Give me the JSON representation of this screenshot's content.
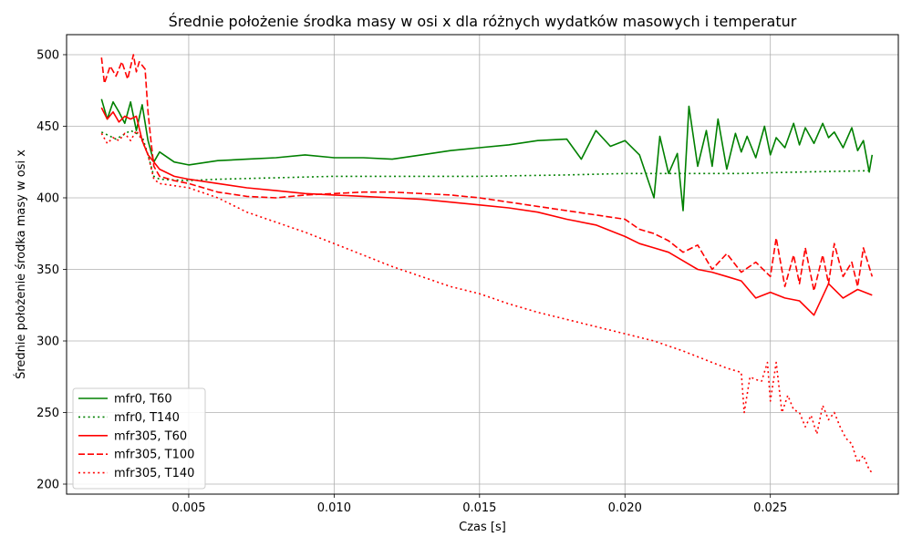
{
  "chart_data": {
    "type": "line",
    "title": "Średnie położenie środka masy w osi x dla różnych wydatków masowych i temperatur",
    "xlabel": "Czas [s]",
    "ylabel": "Średnie położenie środka masy w osi x",
    "xlim": [
      0.0008,
      0.0294
    ],
    "ylim": [
      193,
      514
    ],
    "xticks": [
      0.005,
      0.01,
      0.015,
      0.02,
      0.025
    ],
    "xtick_labels": [
      "0.005",
      "0.010",
      "0.015",
      "0.020",
      "0.025"
    ],
    "yticks": [
      200,
      250,
      300,
      350,
      400,
      450,
      500
    ],
    "ytick_labels": [
      "200",
      "250",
      "300",
      "350",
      "400",
      "450",
      "500"
    ],
    "grid": true,
    "legend_position": "lower-left",
    "series": [
      {
        "name": "mfr0, T60",
        "color": "#008000",
        "style": "solid",
        "x": [
          0.002,
          0.0022,
          0.0024,
          0.0026,
          0.0028,
          0.003,
          0.0032,
          0.0034,
          0.0036,
          0.0038,
          0.004,
          0.0045,
          0.005,
          0.006,
          0.007,
          0.008,
          0.009,
          0.01,
          0.011,
          0.012,
          0.013,
          0.014,
          0.015,
          0.016,
          0.017,
          0.018,
          0.0185,
          0.019,
          0.0195,
          0.02,
          0.0205,
          0.021,
          0.0212,
          0.0215,
          0.0218,
          0.022,
          0.0222,
          0.0225,
          0.0228,
          0.023,
          0.0232,
          0.0235,
          0.0238,
          0.024,
          0.0242,
          0.0245,
          0.0248,
          0.025,
          0.0252,
          0.0255,
          0.0258,
          0.026,
          0.0262,
          0.0265,
          0.0268,
          0.027,
          0.0272,
          0.0275,
          0.0278,
          0.028,
          0.0282,
          0.0284,
          0.0285
        ],
        "y": [
          469,
          455,
          467,
          460,
          452,
          467,
          447,
          465,
          440,
          425,
          432,
          425,
          423,
          426,
          427,
          428,
          430,
          428,
          428,
          427,
          430,
          433,
          435,
          437,
          440,
          441,
          427,
          447,
          436,
          440,
          430,
          400,
          443,
          417,
          431,
          391,
          464,
          422,
          447,
          422,
          455,
          420,
          445,
          432,
          443,
          428,
          450,
          430,
          442,
          435,
          452,
          437,
          449,
          438,
          452,
          442,
          446,
          435,
          449,
          433,
          440,
          418,
          430
        ]
      },
      {
        "name": "mfr0, T140",
        "color": "#008000",
        "style": "dotted",
        "x": [
          0.002,
          0.0025,
          0.003,
          0.0034,
          0.0036,
          0.0038,
          0.004,
          0.005,
          0.006,
          0.008,
          0.01,
          0.012,
          0.015,
          0.018,
          0.02,
          0.022,
          0.024,
          0.026,
          0.0285
        ],
        "y": [
          446,
          441,
          447,
          443,
          430,
          415,
          413,
          412,
          413,
          414,
          415,
          415,
          415,
          416,
          417,
          417,
          417,
          418,
          419
        ]
      },
      {
        "name": "mfr305, T60",
        "color": "#ff0000",
        "style": "solid",
        "x": [
          0.002,
          0.0022,
          0.0024,
          0.0026,
          0.0028,
          0.003,
          0.0032,
          0.0034,
          0.0036,
          0.0038,
          0.004,
          0.0045,
          0.005,
          0.006,
          0.007,
          0.008,
          0.009,
          0.01,
          0.011,
          0.012,
          0.013,
          0.014,
          0.015,
          0.016,
          0.017,
          0.018,
          0.019,
          0.02,
          0.0205,
          0.021,
          0.0215,
          0.022,
          0.0225,
          0.023,
          0.0235,
          0.024,
          0.0245,
          0.025,
          0.0255,
          0.026,
          0.0265,
          0.027,
          0.0275,
          0.028,
          0.0285
        ],
        "y": [
          463,
          455,
          460,
          453,
          457,
          455,
          457,
          440,
          430,
          425,
          420,
          415,
          413,
          410,
          407,
          405,
          403,
          402,
          401,
          400,
          399,
          397,
          395,
          393,
          390,
          385,
          381,
          373,
          368,
          365,
          362,
          356,
          350,
          348,
          345,
          342,
          330,
          334,
          330,
          328,
          318,
          340,
          330,
          336,
          332
        ]
      },
      {
        "name": "mfr305, T100",
        "color": "#ff0000",
        "style": "dashed",
        "x": [
          0.002,
          0.0021,
          0.0023,
          0.0025,
          0.0027,
          0.0029,
          0.0031,
          0.0032,
          0.0033,
          0.0035,
          0.0036,
          0.0037,
          0.0038,
          0.004,
          0.0045,
          0.005,
          0.006,
          0.007,
          0.008,
          0.009,
          0.01,
          0.011,
          0.012,
          0.013,
          0.014,
          0.015,
          0.016,
          0.017,
          0.018,
          0.019,
          0.02,
          0.0205,
          0.021,
          0.0215,
          0.022,
          0.0225,
          0.023,
          0.0235,
          0.024,
          0.0245,
          0.025,
          0.0252,
          0.0255,
          0.0258,
          0.026,
          0.0262,
          0.0265,
          0.0268,
          0.027,
          0.0272,
          0.0275,
          0.0278,
          0.028,
          0.0282,
          0.0285
        ],
        "y": [
          498,
          480,
          492,
          485,
          495,
          483,
          500,
          488,
          495,
          490,
          460,
          440,
          422,
          415,
          412,
          410,
          404,
          401,
          400,
          402,
          403,
          404,
          404,
          403,
          402,
          400,
          397,
          394,
          391,
          388,
          385,
          378,
          375,
          370,
          362,
          367,
          350,
          361,
          348,
          355,
          345,
          372,
          338,
          360,
          340,
          365,
          335,
          360,
          340,
          368,
          345,
          355,
          338,
          365,
          345
        ]
      },
      {
        "name": "mfr305, T140",
        "color": "#ff0000",
        "style": "dotted",
        "x": [
          0.002,
          0.0022,
          0.0024,
          0.0026,
          0.0028,
          0.003,
          0.0032,
          0.0034,
          0.0036,
          0.0038,
          0.004,
          0.005,
          0.006,
          0.007,
          0.008,
          0.009,
          0.01,
          0.011,
          0.012,
          0.013,
          0.014,
          0.015,
          0.016,
          0.017,
          0.018,
          0.019,
          0.02,
          0.021,
          0.022,
          0.023,
          0.0235,
          0.024,
          0.0241,
          0.0243,
          0.0245,
          0.0247,
          0.0249,
          0.025,
          0.0252,
          0.0254,
          0.0256,
          0.0258,
          0.026,
          0.0262,
          0.0264,
          0.0266,
          0.0268,
          0.027,
          0.0272,
          0.0274,
          0.0276,
          0.0278,
          0.028,
          0.0282,
          0.0284,
          0.0285
        ],
        "y": [
          445,
          438,
          442,
          440,
          445,
          440,
          447,
          440,
          430,
          413,
          410,
          407,
          400,
          390,
          383,
          376,
          368,
          360,
          352,
          345,
          338,
          333,
          326,
          320,
          315,
          310,
          305,
          300,
          293,
          285,
          281,
          278,
          250,
          275,
          273,
          272,
          285,
          258,
          285,
          250,
          262,
          252,
          250,
          240,
          248,
          235,
          255,
          245,
          250,
          240,
          232,
          228,
          215,
          220,
          210,
          208
        ]
      }
    ]
  }
}
